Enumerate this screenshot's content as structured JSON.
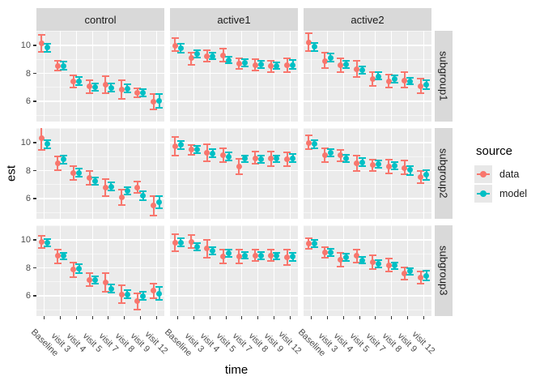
{
  "colors": {
    "data_series": "#F8766D",
    "model_series": "#00BFC4",
    "panel_background": "#ebebeb",
    "strip_background": "#d9d9d9",
    "gridline": "#ffffff",
    "axis_text": "#4d4d4d",
    "legend_key_background": "#e8e8e8"
  },
  "chart_data": {
    "type": "pointrange",
    "title": "",
    "xlabel": "time",
    "ylabel": "est",
    "x_categories": [
      "Baseline",
      "visit 3",
      "visit 4",
      "visit 5",
      "visit 7",
      "visit 8",
      "visit 9",
      "visit 12"
    ],
    "yticks": [
      6,
      8,
      10
    ],
    "ylim": [
      4.55,
      11.05
    ],
    "grid": "on",
    "facet_columns": [
      "control",
      "active1",
      "active2"
    ],
    "facet_rows": [
      "subgroup1",
      "subgroup2",
      "subgroup3"
    ],
    "legend": {
      "title": "source",
      "position": "right",
      "entries": [
        {
          "label": "data",
          "color": "#F8766D"
        },
        {
          "label": "model",
          "color": "#00BFC4"
        }
      ]
    },
    "panels": [
      {
        "column": "control",
        "row": "subgroup1",
        "series": [
          {
            "name": "data",
            "est": [
              10.15,
              8.55,
              7.4,
              7.05,
              7.2,
              6.85,
              6.6,
              6.0
            ],
            "lo": [
              9.55,
              8.2,
              7.0,
              6.6,
              6.6,
              6.2,
              6.3,
              5.4
            ],
            "hi": [
              10.75,
              8.9,
              7.85,
              7.5,
              7.8,
              7.5,
              6.95,
              6.5
            ]
          },
          {
            "name": "model",
            "est": [
              9.85,
              8.55,
              7.45,
              7.0,
              6.95,
              6.9,
              6.6,
              6.05
            ],
            "lo": [
              9.55,
              8.25,
              7.15,
              6.75,
              6.7,
              6.65,
              6.35,
              5.55
            ],
            "hi": [
              10.15,
              8.85,
              7.75,
              7.3,
              7.25,
              7.2,
              6.9,
              6.5
            ]
          }
        ]
      },
      {
        "column": "active1",
        "row": "subgroup1",
        "series": [
          {
            "name": "data",
            "est": [
              10.0,
              9.1,
              9.25,
              9.3,
              8.7,
              8.6,
              8.5,
              8.6
            ],
            "lo": [
              9.6,
              8.6,
              8.85,
              8.85,
              8.3,
              8.2,
              8.1,
              8.1
            ],
            "hi": [
              10.5,
              9.5,
              9.65,
              9.8,
              9.1,
              9.0,
              8.9,
              9.1
            ]
          },
          {
            "name": "model",
            "est": [
              9.8,
              9.4,
              9.25,
              8.95,
              8.75,
              8.65,
              8.55,
              8.6
            ],
            "lo": [
              9.5,
              9.15,
              9.0,
              8.7,
              8.5,
              8.4,
              8.3,
              8.3
            ],
            "hi": [
              10.1,
              9.65,
              9.5,
              9.2,
              9.0,
              8.9,
              8.8,
              8.95
            ]
          }
        ]
      },
      {
        "column": "active2",
        "row": "subgroup1",
        "series": [
          {
            "name": "data",
            "est": [
              10.2,
              8.9,
              8.6,
              8.3,
              7.6,
              7.45,
              7.5,
              7.1
            ],
            "lo": [
              9.6,
              8.4,
              8.1,
              7.75,
              7.1,
              7.0,
              7.0,
              6.6
            ],
            "hi": [
              10.9,
              9.5,
              9.1,
              8.9,
              8.1,
              7.9,
              8.1,
              7.6
            ]
          },
          {
            "name": "model",
            "est": [
              9.9,
              9.1,
              8.65,
              8.25,
              7.8,
              7.6,
              7.45,
              7.2
            ],
            "lo": [
              9.6,
              8.85,
              8.4,
              8.0,
              7.55,
              7.35,
              7.2,
              6.9
            ],
            "hi": [
              10.2,
              9.4,
              8.9,
              8.5,
              8.1,
              7.85,
              7.7,
              7.5
            ]
          }
        ]
      },
      {
        "column": "control",
        "row": "subgroup2",
        "series": [
          {
            "name": "data",
            "est": [
              10.3,
              8.55,
              7.85,
              7.5,
              6.8,
              6.1,
              6.8,
              5.5
            ],
            "lo": [
              9.5,
              8.05,
              7.35,
              7.0,
              6.15,
              5.55,
              6.4,
              4.8
            ],
            "hi": [
              11.1,
              9.0,
              8.35,
              8.0,
              7.4,
              6.65,
              7.2,
              6.2
            ]
          },
          {
            "name": "model",
            "est": [
              9.9,
              8.8,
              7.85,
              7.25,
              6.85,
              6.55,
              6.2,
              5.75
            ],
            "lo": [
              9.6,
              8.5,
              7.55,
              7.0,
              6.6,
              6.3,
              5.9,
              5.3
            ],
            "hi": [
              10.2,
              9.05,
              8.15,
              7.5,
              7.15,
              6.8,
              6.5,
              6.2
            ]
          }
        ]
      },
      {
        "column": "active1",
        "row": "subgroup2",
        "series": [
          {
            "name": "data",
            "est": [
              9.75,
              9.5,
              9.3,
              9.1,
              8.3,
              8.9,
              8.85,
              8.8
            ],
            "lo": [
              9.1,
              9.15,
              8.65,
              8.6,
              7.75,
              8.5,
              8.35,
              8.3
            ],
            "hi": [
              10.4,
              9.85,
              9.9,
              9.6,
              8.85,
              9.35,
              9.35,
              9.3
            ]
          },
          {
            "name": "model",
            "est": [
              9.85,
              9.5,
              9.25,
              9.0,
              8.85,
              8.8,
              8.85,
              8.9
            ],
            "lo": [
              9.55,
              9.25,
              8.95,
              8.75,
              8.6,
              8.55,
              8.6,
              8.6
            ],
            "hi": [
              10.15,
              9.8,
              9.55,
              9.3,
              9.1,
              9.1,
              9.1,
              9.2
            ]
          }
        ]
      },
      {
        "column": "active2",
        "row": "subgroup2",
        "series": [
          {
            "name": "data",
            "est": [
              10.0,
              9.1,
              9.1,
              8.5,
              8.4,
              8.3,
              8.2,
              7.55
            ],
            "lo": [
              9.55,
              8.6,
              8.65,
              7.95,
              8.0,
              7.8,
              7.75,
              7.1
            ],
            "hi": [
              10.5,
              9.6,
              9.5,
              9.05,
              8.8,
              8.8,
              8.7,
              8.0
            ]
          },
          {
            "name": "model",
            "est": [
              9.9,
              9.3,
              8.85,
              8.6,
              8.45,
              8.35,
              8.05,
              7.7
            ],
            "lo": [
              9.6,
              9.0,
              8.6,
              8.35,
              8.2,
              8.1,
              7.7,
              7.35
            ],
            "hi": [
              10.2,
              9.55,
              9.15,
              8.9,
              8.7,
              8.6,
              8.35,
              8.05
            ]
          }
        ]
      },
      {
        "column": "control",
        "row": "subgroup3",
        "series": [
          {
            "name": "data",
            "est": [
              9.85,
              8.85,
              7.9,
              7.15,
              6.95,
              6.1,
              5.6,
              6.35
            ],
            "lo": [
              9.4,
              8.35,
              7.35,
              6.7,
              6.3,
              5.5,
              5.0,
              5.8
            ],
            "hi": [
              10.3,
              9.3,
              8.4,
              7.6,
              7.65,
              6.75,
              6.2,
              6.9
            ]
          },
          {
            "name": "model",
            "est": [
              9.8,
              8.85,
              7.95,
              7.15,
              6.5,
              6.1,
              6.0,
              6.15
            ],
            "lo": [
              9.55,
              8.6,
              7.65,
              6.9,
              6.25,
              5.85,
              5.7,
              5.7
            ],
            "hi": [
              10.05,
              9.1,
              8.25,
              7.4,
              6.8,
              6.4,
              6.3,
              6.65
            ]
          }
        ]
      },
      {
        "column": "active1",
        "row": "subgroup3",
        "series": [
          {
            "name": "data",
            "est": [
              9.8,
              9.85,
              9.4,
              8.8,
              8.8,
              8.9,
              8.9,
              8.75
            ],
            "lo": [
              9.2,
              9.4,
              8.75,
              8.3,
              8.3,
              8.5,
              8.5,
              8.2
            ],
            "hi": [
              10.4,
              10.35,
              10.0,
              9.3,
              9.3,
              9.3,
              9.3,
              9.3
            ]
          },
          {
            "name": "model",
            "est": [
              9.8,
              9.5,
              9.2,
              9.05,
              8.9,
              8.9,
              8.85,
              8.8
            ],
            "lo": [
              9.55,
              9.25,
              8.95,
              8.8,
              8.65,
              8.6,
              8.6,
              8.5
            ],
            "hi": [
              10.1,
              9.75,
              9.5,
              9.3,
              9.15,
              9.15,
              9.1,
              9.1
            ]
          }
        ]
      },
      {
        "column": "active2",
        "row": "subgroup3",
        "series": [
          {
            "name": "data",
            "est": [
              9.75,
              9.1,
              8.6,
              8.85,
              8.4,
              8.2,
              7.6,
              7.3
            ],
            "lo": [
              9.35,
              8.7,
              8.1,
              8.4,
              7.9,
              7.75,
              7.15,
              6.85
            ],
            "hi": [
              10.15,
              9.5,
              9.1,
              9.3,
              8.9,
              8.65,
              8.05,
              7.75
            ]
          },
          {
            "name": "model",
            "est": [
              9.75,
              9.1,
              8.75,
              8.55,
              8.3,
              8.15,
              7.75,
              7.45
            ],
            "lo": [
              9.5,
              8.85,
              8.5,
              8.3,
              8.05,
              7.9,
              7.5,
              7.1
            ],
            "hi": [
              10.0,
              9.35,
              9.0,
              8.8,
              8.55,
              8.4,
              8.0,
              7.8
            ]
          }
        ]
      }
    ]
  }
}
